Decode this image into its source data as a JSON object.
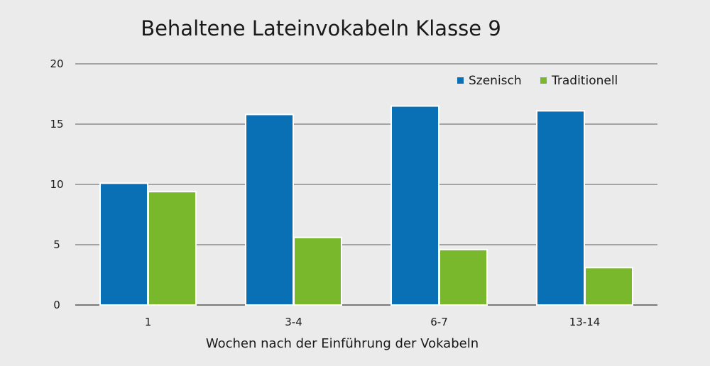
{
  "chart_data": {
    "type": "bar",
    "title": "Behaltene Lateinvokabeln Klasse 9",
    "xlabel": "Wochen nach der Einführung der Vokabeln",
    "ylabel": "",
    "categories": [
      "1",
      "3-4",
      "6-7",
      "13-14"
    ],
    "series": [
      {
        "name": "Szenisch",
        "color": "#0a70b5",
        "values": [
          10.1,
          15.8,
          16.5,
          16.1
        ]
      },
      {
        "name": "Traditionell",
        "color": "#79b82c",
        "values": [
          9.4,
          5.6,
          4.6,
          3.1
        ]
      }
    ],
    "ylim": [
      0,
      20
    ],
    "yticks": [
      0,
      5,
      10,
      15,
      20
    ],
    "grid": true,
    "legend_position": "top-right"
  }
}
